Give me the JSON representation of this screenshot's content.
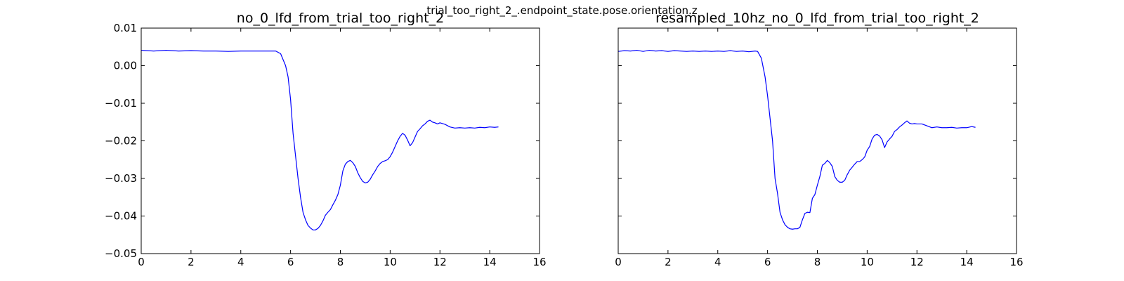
{
  "figure": {
    "suptitle": "trial_too_right_2_.endpoint_state.pose.orientation.z"
  },
  "chart_data": [
    {
      "type": "line",
      "title": "no_0_lfd_from_trial_too_right_2",
      "xlabel": "",
      "ylabel": "",
      "xlim": [
        0,
        16
      ],
      "ylim": [
        -0.05,
        0.01
      ],
      "xticks": [
        0,
        2,
        4,
        6,
        8,
        10,
        12,
        14,
        16
      ],
      "xtick_labels": [
        "0",
        "2",
        "4",
        "6",
        "8",
        "10",
        "12",
        "14",
        "16"
      ],
      "yticks": [
        -0.05,
        -0.04,
        -0.03,
        -0.02,
        -0.01,
        0.0,
        0.01
      ],
      "ytick_labels": [
        "−0.05",
        "−0.04",
        "−0.03",
        "−0.02",
        "−0.01",
        "0.00",
        "0.01"
      ],
      "grid": false,
      "color": "#0000ff",
      "series": [
        {
          "x": [
            0.0,
            0.5,
            1.0,
            1.5,
            2.0,
            2.5,
            3.0,
            3.5,
            4.0,
            4.5,
            5.0,
            5.4,
            5.6,
            5.8,
            5.9,
            6.0,
            6.1,
            6.2,
            6.3,
            6.4,
            6.5,
            6.6,
            6.7,
            6.8,
            6.9,
            7.0,
            7.1,
            7.2,
            7.3,
            7.4,
            7.5,
            7.6,
            7.7,
            7.8,
            7.9,
            8.0,
            8.1,
            8.2,
            8.3,
            8.4,
            8.5,
            8.6,
            8.7,
            8.8,
            8.9,
            9.0,
            9.1,
            9.2,
            9.3,
            9.4,
            9.5,
            9.6,
            9.7,
            9.8,
            9.9,
            10.0,
            10.1,
            10.2,
            10.3,
            10.4,
            10.5,
            10.6,
            10.7,
            10.8,
            10.9,
            11.0,
            11.1,
            11.2,
            11.3,
            11.4,
            11.5,
            11.6,
            11.7,
            11.8,
            11.9,
            12.0,
            12.2,
            12.4,
            12.6,
            12.8,
            13.0,
            13.2,
            13.4,
            13.6,
            13.8,
            14.0,
            14.2,
            14.35
          ],
          "y": [
            0.0041,
            0.0039,
            0.0041,
            0.0039,
            0.004,
            0.0039,
            0.0039,
            0.0038,
            0.0039,
            0.0039,
            0.0039,
            0.0039,
            0.0032,
            0.0,
            -0.003,
            -0.009,
            -0.018,
            -0.024,
            -0.03,
            -0.035,
            -0.039,
            -0.041,
            -0.0425,
            -0.0432,
            -0.0437,
            -0.0437,
            -0.0433,
            -0.0425,
            -0.0413,
            -0.0398,
            -0.039,
            -0.0383,
            -0.037,
            -0.0358,
            -0.0343,
            -0.0318,
            -0.028,
            -0.0262,
            -0.0255,
            -0.0252,
            -0.0258,
            -0.0268,
            -0.0285,
            -0.0298,
            -0.0308,
            -0.0312,
            -0.031,
            -0.0302,
            -0.029,
            -0.028,
            -0.0268,
            -0.026,
            -0.0255,
            -0.0253,
            -0.025,
            -0.0242,
            -0.023,
            -0.0215,
            -0.02,
            -0.0188,
            -0.018,
            -0.0185,
            -0.0198,
            -0.0213,
            -0.0205,
            -0.019,
            -0.0175,
            -0.0168,
            -0.016,
            -0.0155,
            -0.0148,
            -0.0145,
            -0.015,
            -0.0152,
            -0.0155,
            -0.0152,
            -0.0156,
            -0.0163,
            -0.0166,
            -0.0165,
            -0.0166,
            -0.0165,
            -0.0166,
            -0.0164,
            -0.0165,
            -0.0163,
            -0.0164,
            -0.0163
          ]
        }
      ]
    },
    {
      "type": "line",
      "title": "resampled_10hz_no_0_lfd_from_trial_too_right_2",
      "xlabel": "",
      "ylabel": "",
      "xlim": [
        0,
        16
      ],
      "ylim": [
        -0.05,
        0.01
      ],
      "xticks": [
        0,
        2,
        4,
        6,
        8,
        10,
        12,
        14,
        16
      ],
      "xtick_labels": [
        "0",
        "2",
        "4",
        "6",
        "8",
        "10",
        "12",
        "14",
        "16"
      ],
      "yticks": [
        -0.05,
        -0.04,
        -0.03,
        -0.02,
        -0.01,
        0.0,
        0.01
      ],
      "ytick_labels": [],
      "grid": false,
      "color": "#0000ff",
      "series": [
        {
          "x": [
            0.0,
            0.25,
            0.5,
            0.75,
            1.0,
            1.25,
            1.5,
            1.75,
            2.0,
            2.25,
            2.5,
            2.75,
            3.0,
            3.25,
            3.5,
            3.75,
            4.0,
            4.25,
            4.5,
            4.75,
            5.0,
            5.25,
            5.5,
            5.6,
            5.75,
            5.9,
            6.0,
            6.1,
            6.2,
            6.3,
            6.4,
            6.5,
            6.6,
            6.7,
            6.8,
            6.9,
            7.0,
            7.1,
            7.2,
            7.3,
            7.4,
            7.5,
            7.6,
            7.7,
            7.8,
            7.9,
            8.0,
            8.1,
            8.2,
            8.3,
            8.4,
            8.5,
            8.6,
            8.7,
            8.8,
            8.9,
            9.0,
            9.1,
            9.2,
            9.3,
            9.4,
            9.5,
            9.6,
            9.7,
            9.8,
            9.9,
            10.0,
            10.1,
            10.2,
            10.3,
            10.4,
            10.5,
            10.6,
            10.7,
            10.8,
            10.9,
            11.0,
            11.1,
            11.2,
            11.3,
            11.4,
            11.5,
            11.6,
            11.7,
            11.8,
            11.9,
            12.0,
            12.2,
            12.4,
            12.6,
            12.8,
            13.0,
            13.2,
            13.4,
            13.6,
            13.8,
            14.0,
            14.2,
            14.35
          ],
          "y": [
            0.0038,
            0.004,
            0.0039,
            0.0041,
            0.0038,
            0.0041,
            0.0039,
            0.004,
            0.0038,
            0.004,
            0.0039,
            0.0038,
            0.0039,
            0.0038,
            0.0039,
            0.0038,
            0.0039,
            0.0038,
            0.004,
            0.0038,
            0.0039,
            0.0037,
            0.0039,
            0.0038,
            0.002,
            -0.003,
            -0.008,
            -0.014,
            -0.02,
            -0.03,
            -0.034,
            -0.039,
            -0.041,
            -0.0423,
            -0.043,
            -0.0434,
            -0.0435,
            -0.0434,
            -0.0434,
            -0.043,
            -0.041,
            -0.0393,
            -0.039,
            -0.0391,
            -0.0353,
            -0.0343,
            -0.0318,
            -0.0295,
            -0.0265,
            -0.026,
            -0.0252,
            -0.0258,
            -0.0268,
            -0.0295,
            -0.0305,
            -0.031,
            -0.031,
            -0.0305,
            -0.029,
            -0.0278,
            -0.027,
            -0.0262,
            -0.0255,
            -0.0255,
            -0.025,
            -0.0243,
            -0.0225,
            -0.0215,
            -0.0195,
            -0.0185,
            -0.0183,
            -0.0187,
            -0.0197,
            -0.0218,
            -0.0203,
            -0.0195,
            -0.0188,
            -0.0175,
            -0.017,
            -0.0163,
            -0.0158,
            -0.0152,
            -0.0147,
            -0.0153,
            -0.0155,
            -0.0154,
            -0.0155,
            -0.0155,
            -0.016,
            -0.0165,
            -0.0163,
            -0.0165,
            -0.0165,
            -0.0164,
            -0.0166,
            -0.0165,
            -0.0165,
            -0.0162,
            -0.0164
          ]
        }
      ]
    }
  ]
}
